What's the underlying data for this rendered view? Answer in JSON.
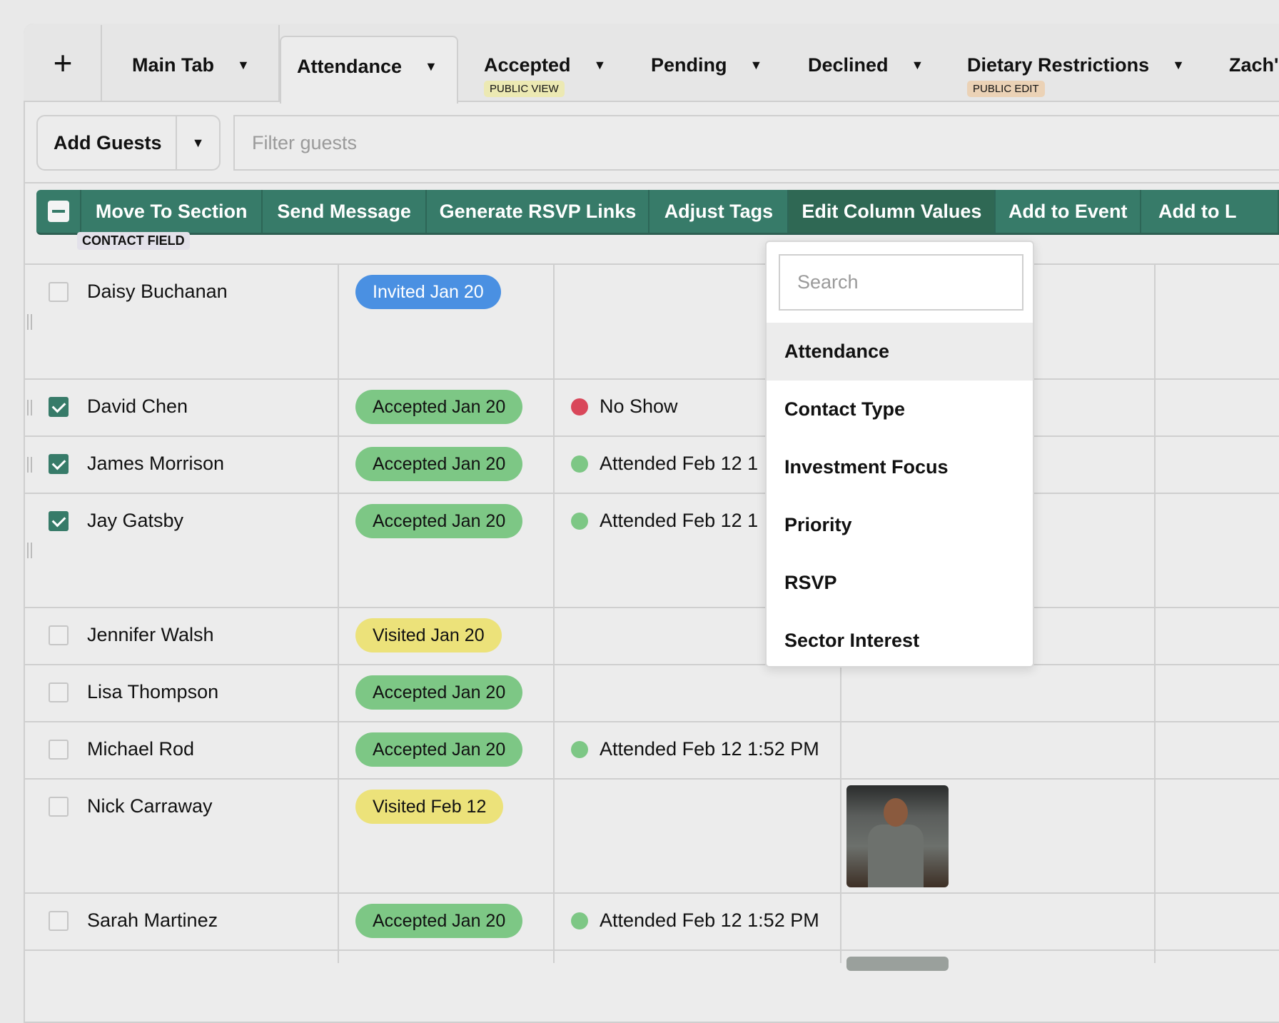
{
  "tabs": [
    {
      "label": "Main Tab"
    },
    {
      "label": "Attendance",
      "active": true
    },
    {
      "label": "Accepted",
      "badge": "PUBLIC VIEW",
      "badge_color": "#ece9b3"
    },
    {
      "label": "Pending"
    },
    {
      "label": "Declined"
    },
    {
      "label": "Dietary Restrictions",
      "badge": "PUBLIC EDIT",
      "badge_color": "#ebd2b6"
    },
    {
      "label": "Zach's"
    }
  ],
  "toolbar": {
    "add_guests": "Add Guests",
    "filter_placeholder": "Filter guests"
  },
  "actions": [
    "Move To Section",
    "Send Message",
    "Generate RSVP Links",
    "Adjust Tags",
    "Edit Column Values",
    "Add to Event",
    "Add to L"
  ],
  "contact_field_label": "CONTACT FIELD",
  "colors": {
    "action_bar": "#377b69",
    "invited": "#4a90e2",
    "accepted": "#7dc785",
    "visited": "#ece27a",
    "no_show": "#d9475a",
    "attended": "#7dc785"
  },
  "dropdown": {
    "search_placeholder": "Search",
    "items": [
      "Attendance",
      "Contact Type",
      "Investment Focus",
      "Priority",
      "RSVP",
      "Sector Interest"
    ],
    "highlighted": "Attendance"
  },
  "rows": [
    {
      "name": "Daisy Buchanan",
      "checked": false,
      "rsvp": "Invited Jan 20",
      "rsvp_type": "invited",
      "attendance": ""
    },
    {
      "name": "David Chen",
      "checked": true,
      "rsvp": "Accepted Jan 20",
      "rsvp_type": "accepted",
      "attendance": "No Show",
      "attendance_type": "no_show"
    },
    {
      "name": "James Morrison",
      "checked": true,
      "rsvp": "Accepted Jan 20",
      "rsvp_type": "accepted",
      "attendance": "Attended Feb 12 1",
      "attendance_type": "attended"
    },
    {
      "name": "Jay Gatsby",
      "checked": true,
      "rsvp": "Accepted Jan 20",
      "rsvp_type": "accepted",
      "attendance": "Attended Feb 12 1",
      "attendance_type": "attended"
    },
    {
      "name": "Jennifer Walsh",
      "checked": false,
      "rsvp": "Visited Jan 20",
      "rsvp_type": "visited",
      "attendance": ""
    },
    {
      "name": "Lisa Thompson",
      "checked": false,
      "rsvp": "Accepted Jan 20",
      "rsvp_type": "accepted",
      "attendance": ""
    },
    {
      "name": "Michael Rod",
      "checked": false,
      "rsvp": "Accepted Jan 20",
      "rsvp_type": "accepted",
      "attendance": "Attended Feb 12 1:52 PM",
      "attendance_type": "attended"
    },
    {
      "name": "Nick Carraway",
      "checked": false,
      "rsvp": "Visited Feb 12",
      "rsvp_type": "visited",
      "attendance": "",
      "photo": true
    },
    {
      "name": "Sarah Martinez",
      "checked": false,
      "rsvp": "Accepted Jan 20",
      "rsvp_type": "accepted",
      "attendance": "Attended Feb 12 1:52 PM",
      "attendance_type": "attended"
    }
  ]
}
